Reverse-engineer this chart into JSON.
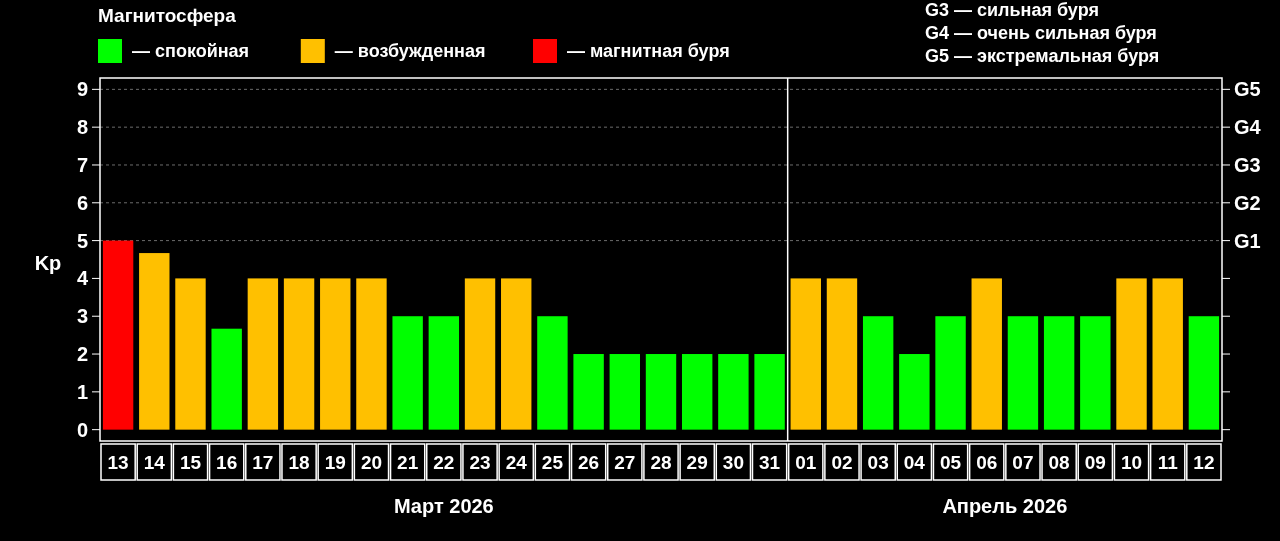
{
  "chart_data": {
    "type": "bar",
    "legend_title": "Магнитосфера",
    "ylabel": "Kp",
    "categories": [
      "13",
      "14",
      "15",
      "16",
      "17",
      "18",
      "19",
      "20",
      "21",
      "22",
      "23",
      "24",
      "25",
      "26",
      "27",
      "28",
      "29",
      "30",
      "31",
      "01",
      "02",
      "03",
      "04",
      "05",
      "06",
      "07",
      "08",
      "09",
      "10",
      "11",
      "12"
    ],
    "series": [
      {
        "name": "— спокойная",
        "color": "#00ff00",
        "values": [
          null,
          null,
          null,
          2.67,
          null,
          null,
          null,
          null,
          3,
          3,
          null,
          null,
          3,
          2,
          2,
          2,
          2,
          2,
          2,
          null,
          null,
          3,
          2,
          3,
          null,
          3,
          3,
          3,
          null,
          null,
          3
        ]
      },
      {
        "name": "— возбужденная",
        "color": "#ffc000",
        "values": [
          null,
          4.67,
          4,
          null,
          4,
          4,
          4,
          4,
          null,
          null,
          4,
          4,
          null,
          null,
          null,
          null,
          null,
          null,
          null,
          4,
          4,
          null,
          null,
          null,
          4,
          null,
          null,
          null,
          4,
          4,
          null
        ]
      },
      {
        "name": "— магнитная буря",
        "color": "#ff0000",
        "values": [
          5,
          null,
          null,
          null,
          null,
          null,
          null,
          null,
          null,
          null,
          null,
          null,
          null,
          null,
          null,
          null,
          null,
          null,
          null,
          null,
          null,
          null,
          null,
          null,
          null,
          null,
          null,
          null,
          null,
          null,
          null
        ]
      }
    ],
    "ylim": [
      -0.3,
      9.3
    ],
    "yticks": [
      0,
      1,
      2,
      3,
      4,
      5,
      6,
      7,
      8,
      9
    ],
    "ref_lines": [
      {
        "axis": "x",
        "value": "01",
        "color": "#ffffff"
      },
      {
        "axis": "y",
        "value": 5,
        "label": "G1",
        "color": "#888888",
        "line_style": "dashed"
      },
      {
        "axis": "y",
        "value": 6,
        "label": "G2",
        "color": "#888888",
        "line_style": "dashed"
      },
      {
        "axis": "y",
        "value": 7,
        "label": "G3",
        "color": "#888888",
        "line_style": "dashed"
      },
      {
        "axis": "y",
        "value": 8,
        "label": "G4",
        "color": "#888888",
        "line_style": "dashed"
      },
      {
        "axis": "y",
        "value": 9,
        "label": "G5",
        "color": "#888888",
        "line_style": "dashed"
      }
    ],
    "annotations": [
      "G3 — сильная буря",
      "G4 — очень сильная буря",
      "G5 — экстремальная буря",
      "Март 2026",
      "Апрель 2026"
    ],
    "legend": "top left"
  }
}
